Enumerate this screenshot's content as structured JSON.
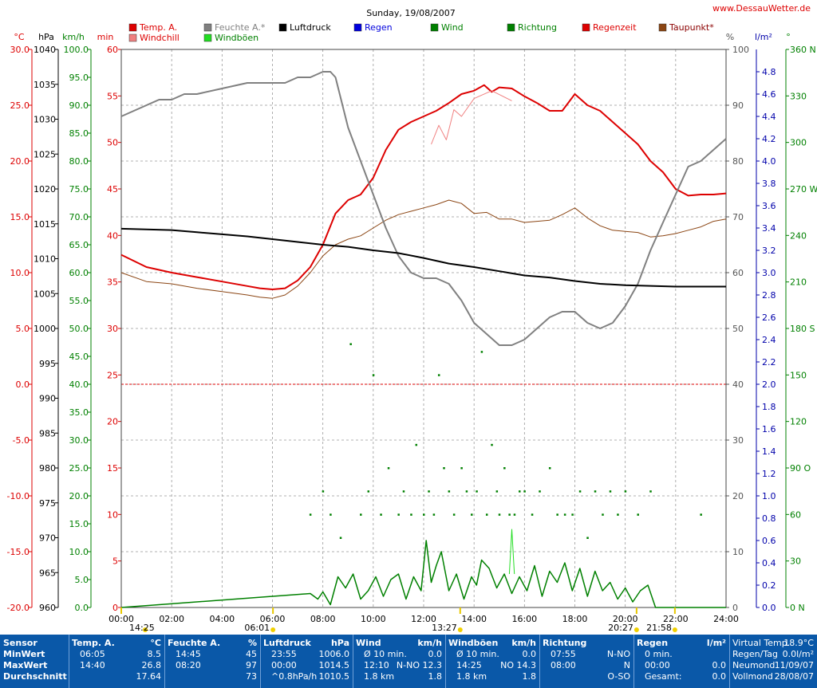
{
  "title": "Sunday, 19/08/2007",
  "website": "www.DessauWetter.de",
  "legend": [
    {
      "label": "Temp. A.",
      "color": "#dd0000",
      "text_color": "#dd0000"
    },
    {
      "label": "Windchill",
      "color": "#f08080",
      "text_color": "#dd0000"
    },
    {
      "label": "Feuchte A.*",
      "color": "#808080",
      "text_color": "#808080"
    },
    {
      "label": "Windböen",
      "color": "#22dd22",
      "text_color": "#008000"
    },
    {
      "label": "Luftdruck",
      "color": "#000000",
      "text_color": "#000000"
    },
    {
      "label": "Regen",
      "color": "#0000dd",
      "text_color": "#0000dd"
    },
    {
      "label": "Wind",
      "color": "#008000",
      "text_color": "#008000"
    },
    {
      "label": "Richtung",
      "color": "#008000",
      "text_color": "#008000"
    },
    {
      "label": "Regenzeit",
      "color": "#dd0000",
      "text_color": "#dd0000"
    },
    {
      "label": "Taupunkt*",
      "color": "#8b4513",
      "text_color": "#8b0000"
    }
  ],
  "axis_units": {
    "temp": "°C",
    "pressure": "hPa",
    "wind": "km/h",
    "rain_time": "min",
    "humidity": "%",
    "rain": "l/m²",
    "direction": "°"
  },
  "axes": {
    "temp": [
      "30.0",
      "25.0",
      "20.0",
      "15.0",
      "10.0",
      "5.0",
      "0.0",
      "-5.0",
      "-10.0",
      "-15.0",
      "-20.0"
    ],
    "pressure": [
      "1040",
      "1035",
      "1030",
      "1025",
      "1020",
      "1015",
      "1010",
      "1005",
      "1000",
      "995",
      "990",
      "985",
      "980",
      "975",
      "970",
      "965",
      "960"
    ],
    "wind": [
      "100.0",
      "95.0",
      "90.0",
      "85.0",
      "80.0",
      "75.0",
      "70.0",
      "65.0",
      "60.0",
      "55.0",
      "50.0",
      "45.0",
      "40.0",
      "35.0",
      "30.0",
      "25.0",
      "20.0",
      "15.0",
      "10.0",
      "5.0",
      "0.0"
    ],
    "rain_time": [
      "60",
      "55",
      "50",
      "45",
      "40",
      "35",
      "30",
      "25",
      "20",
      "15",
      "10",
      "5",
      "0"
    ],
    "humidity": [
      "100",
      "90",
      "80",
      "70",
      "60",
      "50",
      "40",
      "30",
      "20",
      "10",
      "0"
    ],
    "rain": [
      "4.8",
      "4.6",
      "4.4",
      "4.2",
      "4.0",
      "3.8",
      "3.6",
      "3.4",
      "3.2",
      "3.0",
      "2.8",
      "2.6",
      "2.4",
      "2.2",
      "2.0",
      "1.8",
      "1.6",
      "1.4",
      "1.2",
      "1.0",
      "0.8",
      "0.6",
      "0.4",
      "0.2",
      "0.0"
    ],
    "direction": [
      "360 N",
      "330",
      "300",
      "270 W",
      "240",
      "210",
      "180 S",
      "150",
      "120",
      "90 O",
      "60",
      "30",
      "0 N"
    ],
    "time": [
      "00:00",
      "02:00",
      "04:00",
      "06:00",
      "08:00",
      "10:00",
      "12:00",
      "14:00",
      "16:00",
      "18:00",
      "20:00",
      "22:00",
      "24:00"
    ]
  },
  "sun_markers": [
    {
      "time": "14:25",
      "h": 0.0
    },
    {
      "time": "06:01",
      "h": 6.02
    },
    {
      "time": "13:27",
      "h": 13.45
    },
    {
      "time": "20:27",
      "h": 20.45
    },
    {
      "time": "21:58",
      "h": 21.97
    }
  ],
  "chart_data": {
    "type": "line",
    "x_range_hours": [
      0,
      24
    ],
    "temp_range_c": [
      -20,
      30
    ],
    "pressure_range_hpa": [
      960,
      1040
    ],
    "humidity_range_pct": [
      0,
      100
    ],
    "wind_range_kmh": [
      0,
      100
    ],
    "series": [
      {
        "name": "Temp. A.",
        "unit": "°C",
        "x": [
          0,
          1,
          2,
          3,
          4,
          5,
          5.5,
          6,
          6.5,
          7,
          7.5,
          8,
          8.5,
          9,
          9.5,
          10,
          10.5,
          11,
          11.5,
          12,
          12.5,
          13,
          13.5,
          14,
          14.4,
          14.7,
          15,
          15.5,
          16,
          16.5,
          17,
          17.5,
          18,
          18.5,
          19,
          19.5,
          20,
          20.5,
          21,
          21.5,
          22,
          22.5,
          23,
          23.5,
          24
        ],
        "values": [
          11.6,
          10.5,
          10.0,
          9.6,
          9.2,
          8.8,
          8.6,
          8.5,
          8.6,
          9.3,
          10.5,
          12.5,
          15.3,
          16.5,
          17.0,
          18.5,
          21.0,
          22.8,
          23.5,
          24.0,
          24.5,
          25.2,
          26.0,
          26.3,
          26.8,
          26.2,
          26.6,
          26.5,
          25.8,
          25.2,
          24.5,
          24.5,
          26.0,
          25.0,
          24.5,
          23.5,
          22.5,
          21.5,
          20.0,
          19.0,
          17.5,
          16.9,
          17.0,
          17.0,
          17.1
        ]
      },
      {
        "name": "Windchill",
        "unit": "°C",
        "x": [
          12.3,
          12.6,
          12.9,
          13.2,
          13.5,
          14.0,
          14.7,
          15.5
        ],
        "values": [
          21.5,
          23.2,
          21.9,
          24.6,
          24.0,
          25.6,
          26.3,
          25.4
        ]
      },
      {
        "name": "Taupunkt*",
        "unit": "°C",
        "x": [
          0,
          1,
          2,
          3,
          4,
          5,
          5.5,
          6,
          6.5,
          7,
          7.5,
          8,
          8.5,
          9,
          9.5,
          10,
          10.5,
          11,
          11.5,
          12,
          12.5,
          13,
          13.5,
          14,
          14.5,
          15,
          15.5,
          16,
          16.5,
          17,
          17.5,
          18,
          18.5,
          19,
          19.5,
          20,
          20.5,
          21,
          21.5,
          22,
          22.5,
          23,
          23.5,
          24
        ],
        "values": [
          10.0,
          9.2,
          9.0,
          8.6,
          8.3,
          8.0,
          7.8,
          7.7,
          8.0,
          8.8,
          10.0,
          11.5,
          12.5,
          13.0,
          13.3,
          14.0,
          14.7,
          15.2,
          15.5,
          15.8,
          16.1,
          16.5,
          16.2,
          15.3,
          15.4,
          14.8,
          14.8,
          14.5,
          14.6,
          14.7,
          15.2,
          15.8,
          14.9,
          14.2,
          13.8,
          13.7,
          13.6,
          13.2,
          13.3,
          13.5,
          13.8,
          14.1,
          14.6,
          14.8
        ]
      },
      {
        "name": "Feuchte A.*",
        "unit": "%",
        "x": [
          0,
          0.5,
          1,
          1.5,
          2,
          2.5,
          3,
          4,
          5,
          5.5,
          6,
          6.5,
          7,
          7.5,
          8,
          8.3,
          8.5,
          9,
          9.5,
          10,
          10.5,
          11,
          11.5,
          12,
          12.5,
          13,
          13.5,
          14,
          14.5,
          15,
          15.5,
          16,
          16.5,
          17,
          17.5,
          18,
          18.5,
          19,
          19.5,
          20,
          20.5,
          21,
          21.5,
          22,
          22.5,
          23,
          23.5,
          24
        ],
        "values": [
          88,
          89,
          90,
          91,
          91,
          92,
          92,
          93,
          94,
          94,
          94,
          94,
          95,
          95,
          96,
          96,
          95,
          86,
          80,
          74,
          68,
          63,
          60,
          59,
          59,
          58,
          55,
          51,
          49,
          47,
          47,
          48,
          50,
          52,
          53,
          53,
          51,
          50,
          51,
          54,
          58,
          64,
          69,
          74,
          79,
          80,
          82,
          84
        ]
      },
      {
        "name": "Luftdruck",
        "unit": "hPa",
        "x": [
          0,
          1,
          2,
          3,
          4,
          5,
          6,
          7,
          8,
          9,
          10,
          11,
          12,
          13,
          14,
          15,
          16,
          17,
          18,
          19,
          20,
          21,
          22,
          23,
          24
        ],
        "values": [
          1014.3,
          1014.2,
          1014.1,
          1013.8,
          1013.5,
          1013.2,
          1012.8,
          1012.4,
          1012.0,
          1011.7,
          1011.2,
          1010.8,
          1010.1,
          1009.3,
          1008.8,
          1008.2,
          1007.6,
          1007.3,
          1006.8,
          1006.4,
          1006.2,
          1006.1,
          1006.0,
          1006.0,
          1006.0
        ]
      },
      {
        "name": "Wind",
        "unit": "km/h",
        "x": [
          0,
          7.5,
          7.8,
          8,
          8.3,
          8.6,
          8.9,
          9.2,
          9.5,
          9.8,
          10.1,
          10.4,
          10.7,
          11,
          11.3,
          11.6,
          11.9,
          12.1,
          12.3,
          12.5,
          12.7,
          13,
          13.3,
          13.6,
          13.9,
          14.1,
          14.3,
          14.6,
          14.9,
          15.2,
          15.5,
          15.8,
          16.1,
          16.4,
          16.7,
          17,
          17.3,
          17.6,
          17.9,
          18.2,
          18.5,
          18.8,
          19.1,
          19.4,
          19.7,
          20,
          20.3,
          20.6,
          20.9,
          21.2,
          24
        ],
        "values": [
          0,
          2.5,
          1.5,
          2.8,
          0.5,
          5.5,
          3.5,
          6,
          1.5,
          3,
          5.5,
          2,
          5,
          6,
          1.5,
          5.5,
          3,
          12,
          4.5,
          7.5,
          10,
          3,
          6,
          1.5,
          5.5,
          4,
          8.5,
          7,
          3.5,
          6,
          2.5,
          5.5,
          3,
          7.5,
          2,
          6.5,
          4.5,
          8,
          3,
          7,
          2,
          6.5,
          3,
          4.5,
          1.5,
          3.5,
          1,
          3,
          4,
          0,
          0
        ]
      },
      {
        "name": "Windböen",
        "unit": "km/h",
        "x": [
          15.4,
          15.5,
          15.6
        ],
        "values": [
          6,
          14,
          6
        ]
      },
      {
        "name": "Richtung",
        "unit": "°",
        "type": "scatter",
        "x": [
          7.5,
          8,
          8.3,
          8.7,
          9.1,
          9.5,
          9.8,
          10,
          10.3,
          10.6,
          11,
          11.2,
          11.5,
          11.7,
          12,
          12.2,
          12.4,
          12.6,
          12.8,
          13,
          13.2,
          13.5,
          13.7,
          13.9,
          14.1,
          14.3,
          14.5,
          14.7,
          14.9,
          15,
          15.2,
          15.4,
          15.6,
          15.8,
          16,
          16.3,
          16.6,
          17,
          17.3,
          17.6,
          17.9,
          18.2,
          18.5,
          18.8,
          19.1,
          19.4,
          19.7,
          20,
          20.5,
          21,
          23
        ],
        "values": [
          60,
          75,
          60,
          45,
          170,
          60,
          75,
          150,
          60,
          90,
          60,
          75,
          60,
          105,
          60,
          75,
          60,
          150,
          90,
          75,
          60,
          90,
          75,
          60,
          75,
          165,
          60,
          105,
          75,
          60,
          90,
          60,
          60,
          75,
          75,
          60,
          75,
          90,
          60,
          60,
          60,
          75,
          45,
          75,
          60,
          75,
          60,
          75,
          60,
          75,
          60
        ]
      }
    ]
  },
  "panel": {
    "row_labels": [
      "Sensor",
      "MinWert",
      "MaxWert",
      "Durchschnitt"
    ],
    "sections": [
      {
        "title": "Temp. A.",
        "unit": "°C",
        "rows": [
          [
            "06:05",
            "8.5"
          ],
          [
            "14:40",
            "26.8"
          ],
          [
            "",
            "17.64"
          ]
        ]
      },
      {
        "title": "Feuchte A.",
        "unit": "%",
        "rows": [
          [
            "14:45",
            "45"
          ],
          [
            "08:20",
            "97"
          ],
          [
            "",
            "73"
          ]
        ]
      },
      {
        "title": "Luftdruck",
        "unit": "hPa",
        "rows": [
          [
            "23:55",
            "1006.0"
          ],
          [
            "00:00",
            "1014.5"
          ],
          [
            "^0.8hPa/h",
            "1010.5"
          ]
        ]
      },
      {
        "title": "Wind",
        "unit": "km/h",
        "rows": [
          [
            "Ø 10 min.",
            "0.0"
          ],
          [
            "12:10",
            "N-NO 12.3"
          ],
          [
            "1.8 km",
            "1.8"
          ]
        ]
      },
      {
        "title": "Windböen",
        "unit": "km/h",
        "rows": [
          [
            "Ø 10 min.",
            "0.0"
          ],
          [
            "14:25",
            "NO 14.3"
          ],
          [
            "1.8 km",
            "1.8"
          ]
        ]
      },
      {
        "title": "Richtung",
        "unit": "",
        "rows": [
          [
            "07:55",
            "N-NO"
          ],
          [
            "08:00",
            "N"
          ],
          [
            "",
            "O-SO"
          ]
        ]
      },
      {
        "title": "Regen",
        "unit": "l/m²",
        "rows": [
          [
            "0 min.",
            ""
          ],
          [
            "00:00",
            "0.0"
          ],
          [
            "Gesamt:",
            "0.0"
          ]
        ]
      },
      {
        "title": "",
        "unit": "",
        "rows": [
          [
            "Virtual Temp.",
            "18.9°C"
          ],
          [
            "Regen/Tag",
            "0.0l/m²"
          ],
          [
            "Neumond",
            "11/09/07"
          ],
          [
            "Vollmond",
            "28/08/07"
          ]
        ]
      }
    ]
  }
}
